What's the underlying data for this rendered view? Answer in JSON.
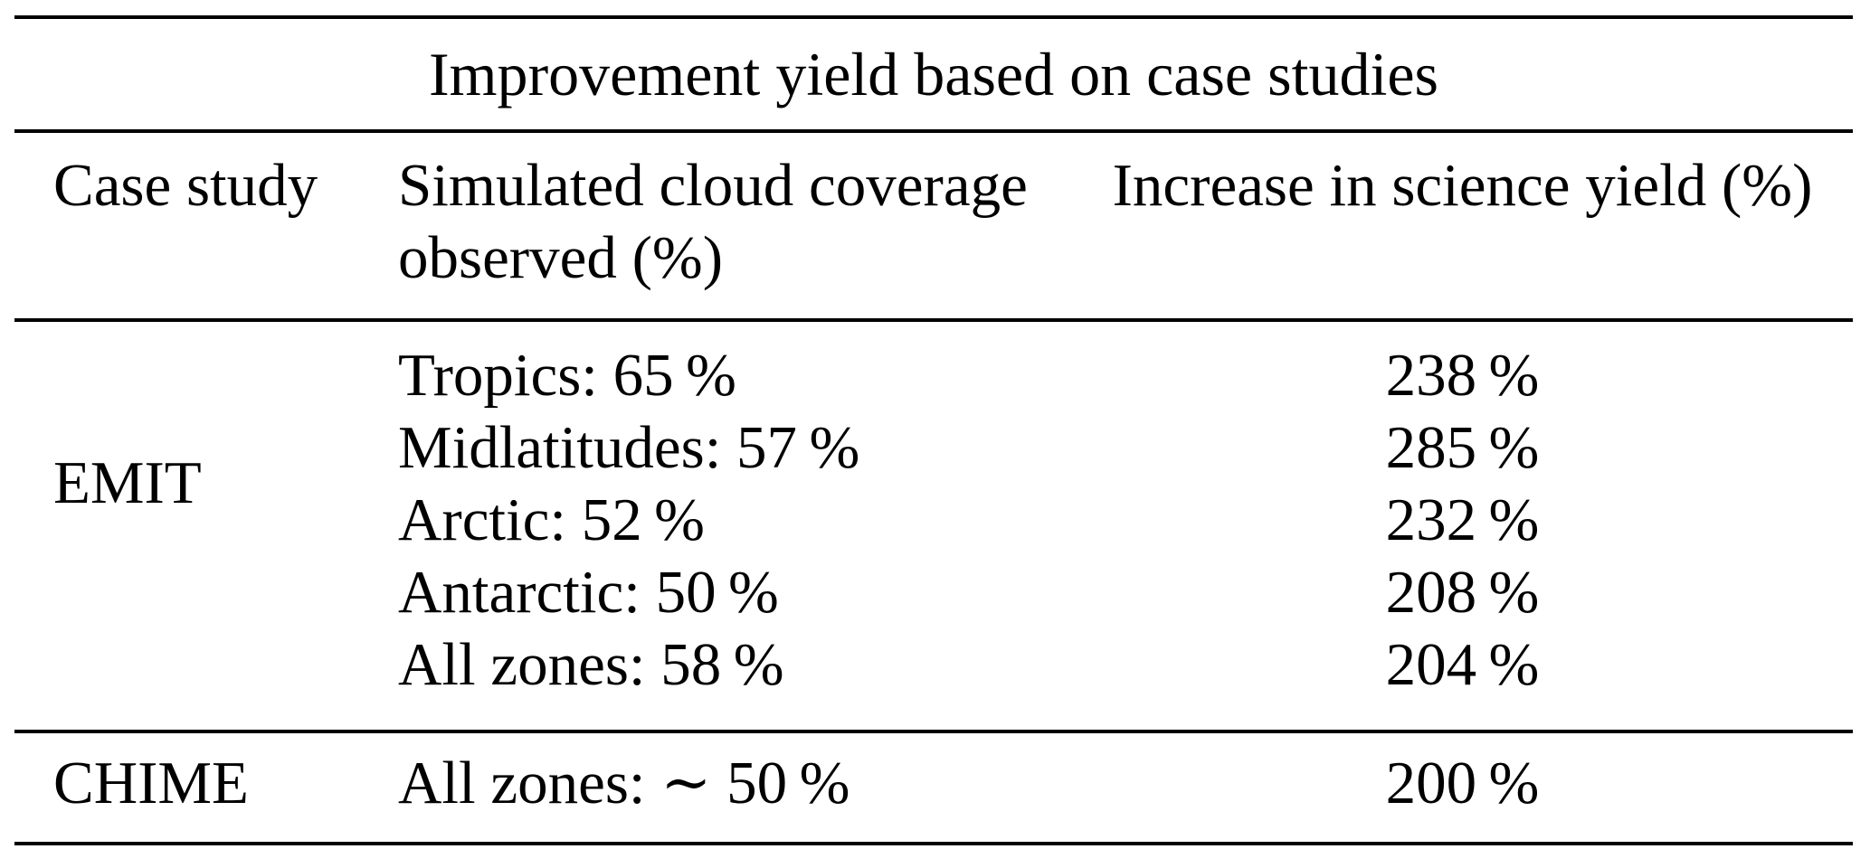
{
  "page": {
    "background": "#ffffff",
    "text_color": "#000000",
    "rule_color": "#000000"
  },
  "table": {
    "title": "Improvement yield based on case studies",
    "headers": {
      "case_study": "Case study",
      "coverage_line1": "Simulated cloud coverage",
      "coverage_line2": "observed (%)",
      "yield": "Increase in science yield (%)"
    },
    "rows": [
      {
        "case_study": "EMIT",
        "coverage": [
          "Tropics: 65 %",
          "Midlatitudes: 57 %",
          "Arctic: 52 %",
          "Antarctic: 50 %",
          "All zones: 58 %"
        ],
        "yield": [
          "238 %",
          "285 %",
          "232 %",
          "208 %",
          "204 %"
        ]
      },
      {
        "case_study": "CHIME",
        "coverage": [
          "All zones: ∼ 50 %"
        ],
        "yield": [
          "200 %"
        ]
      }
    ]
  }
}
